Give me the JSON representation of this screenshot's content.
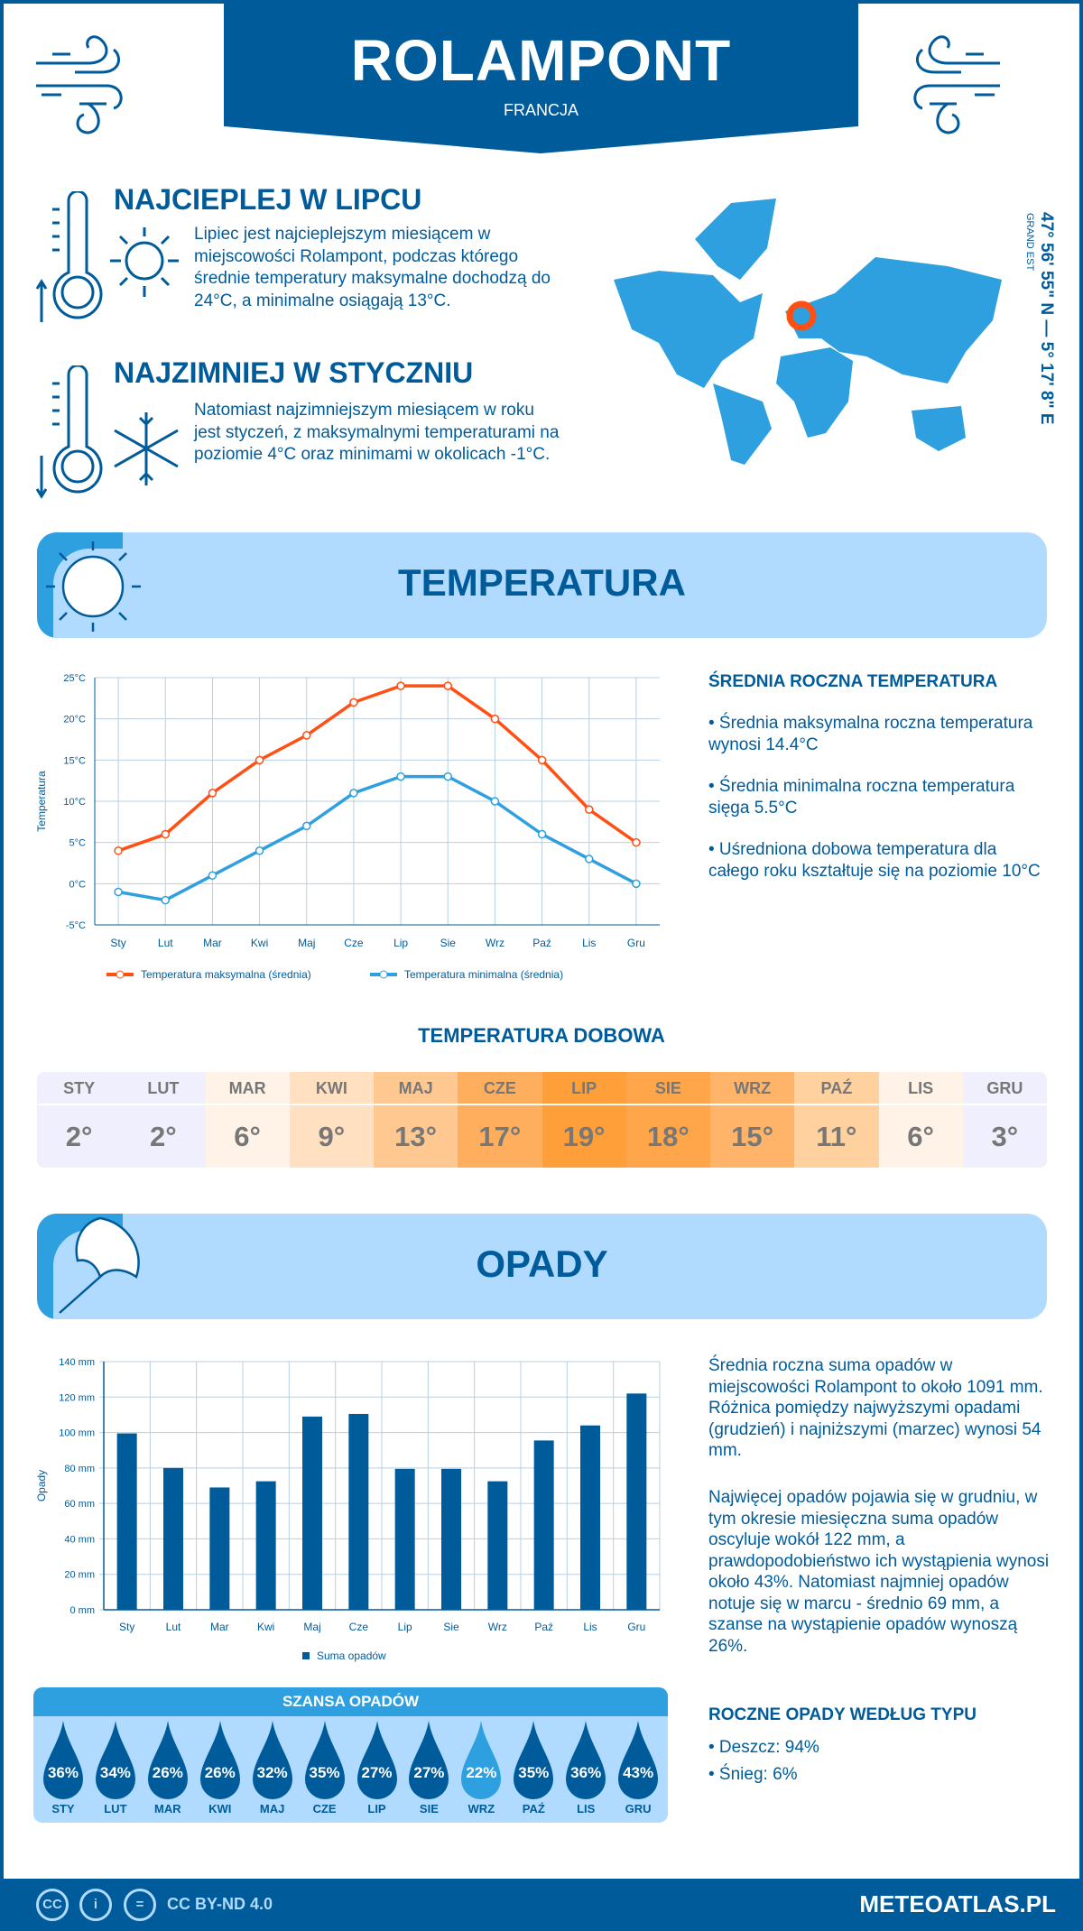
{
  "header": {
    "city": "ROLAMPONT",
    "country": "FRANCJA"
  },
  "warmest": {
    "title": "NAJCIEPLEJ W LIPCU",
    "text": "Lipiec jest najcieplejszym miesiącem w miejscowości Rolampont, podczas którego średnie temperatury maksymalne dochodzą do 24°C, a minimalne osiągają 13°C."
  },
  "coldest": {
    "title": "NAJZIMNIEJ W STYCZNIU",
    "text": "Natomiast najzimniejszym miesiącem w roku jest styczeń, z maksymalnymi temperaturami na poziomie 4°C oraz minimami w okolicach -1°C."
  },
  "location": {
    "coords": "47° 56' 55\" N — 5° 17' 8\" E",
    "region": "GRAND EST"
  },
  "temp_section": {
    "title": "TEMPERATURA",
    "summary_heading": "ŚREDNIA ROCZNA TEMPERATURA",
    "bullets": [
      "• Średnia maksymalna roczna temperatura wynosi 14.4°C",
      "• Średnia minimalna roczna temperatura sięga 5.5°C",
      "• Uśredniona dobowa temperatura dla całego roku kształtuje się na poziomie 10°C"
    ]
  },
  "daily": {
    "title": "TEMPERATURA DOBOWA",
    "months": [
      "STY",
      "LUT",
      "MAR",
      "KWI",
      "MAJ",
      "CZE",
      "LIP",
      "SIE",
      "WRZ",
      "PAŹ",
      "LIS",
      "GRU"
    ],
    "values": [
      "2°",
      "2°",
      "6°",
      "9°",
      "13°",
      "17°",
      "19°",
      "18°",
      "15°",
      "11°",
      "6°",
      "3°"
    ],
    "colors": [
      "#efeffd",
      "#efeffd",
      "#fff3e8",
      "#ffe0c0",
      "#ffc890",
      "#ffae5e",
      "#ff9f3a",
      "#ffa64a",
      "#ffb46a",
      "#ffd19f",
      "#fff3e8",
      "#efeffd"
    ]
  },
  "precip_section": {
    "title": "OPADY",
    "text1": "Średnia roczna suma opadów w miejscowości Rolampont to około 1091 mm. Różnica pomiędzy najwyższymi opadami (grudzień) i najniższymi (marzec) wynosi 54 mm.",
    "text2": "Najwięcej opadów pojawia się w grudniu, w tym okresie miesięczna suma opadów oscyluje wokół 122 mm, a prawdopodobieństwo ich wystąpienia wynosi około 43%. Natomiast najmniej opadów notuje się w marcu - średnio 69 mm, a szanse na wystąpienie opadów wynoszą 26%.",
    "type_heading": "ROCZNE OPADY WEDŁUG TYPU",
    "types": [
      "• Deszcz: 94%",
      "• Śnieg: 6%"
    ]
  },
  "chance": {
    "title": "SZANSA OPADÓW",
    "months": [
      "STY",
      "LUT",
      "MAR",
      "KWI",
      "MAJ",
      "CZE",
      "LIP",
      "SIE",
      "WRZ",
      "PAŹ",
      "LIS",
      "GRU"
    ],
    "values": [
      "36%",
      "34%",
      "26%",
      "26%",
      "32%",
      "35%",
      "27%",
      "27%",
      "22%",
      "35%",
      "36%",
      "43%"
    ]
  },
  "footer": {
    "license": "CC BY-ND 4.0",
    "brand": "METEOATLAS.PL",
    "cc": "CC"
  },
  "chart_data": [
    {
      "type": "line",
      "ylabel": "Temperatura",
      "ylim": [
        -5,
        25
      ],
      "yticks": [
        "-5°C",
        "0°C",
        "5°C",
        "10°C",
        "15°C",
        "20°C",
        "25°C"
      ],
      "categories": [
        "Sty",
        "Lut",
        "Mar",
        "Kwi",
        "Maj",
        "Cze",
        "Lip",
        "Sie",
        "Wrz",
        "Paź",
        "Lis",
        "Gru"
      ],
      "series": [
        {
          "name": "Temperatura maksymalna (średnia)",
          "color": "#ff4f12",
          "values": [
            4,
            6,
            11,
            15,
            18,
            22,
            24,
            24,
            20,
            15,
            9,
            5
          ]
        },
        {
          "name": "Temperatura minimalna (średnia)",
          "color": "#2e9fdf",
          "values": [
            -1,
            -2,
            1,
            4,
            7,
            11,
            13,
            13,
            10,
            6,
            3,
            0
          ]
        }
      ],
      "grid": true,
      "legend": "bottom"
    },
    {
      "type": "bar",
      "ylabel": "Opady",
      "ylim": [
        0,
        140
      ],
      "yticks": [
        "0 mm",
        "20 mm",
        "40 mm",
        "60 mm",
        "80 mm",
        "100 mm",
        "120 mm",
        "140 mm"
      ],
      "categories": [
        "Sty",
        "Lut",
        "Mar",
        "Kwi",
        "Maj",
        "Cze",
        "Lip",
        "Sie",
        "Wrz",
        "Paź",
        "Lis",
        "Gru"
      ],
      "series": [
        {
          "name": "Suma opadów",
          "color": "#005b9a",
          "values": [
            99.5,
            80,
            69,
            72.5,
            109,
            110.5,
            79.5,
            79.5,
            72.5,
            95.5,
            104,
            122
          ]
        }
      ],
      "grid": true,
      "legend": "bottom"
    }
  ]
}
